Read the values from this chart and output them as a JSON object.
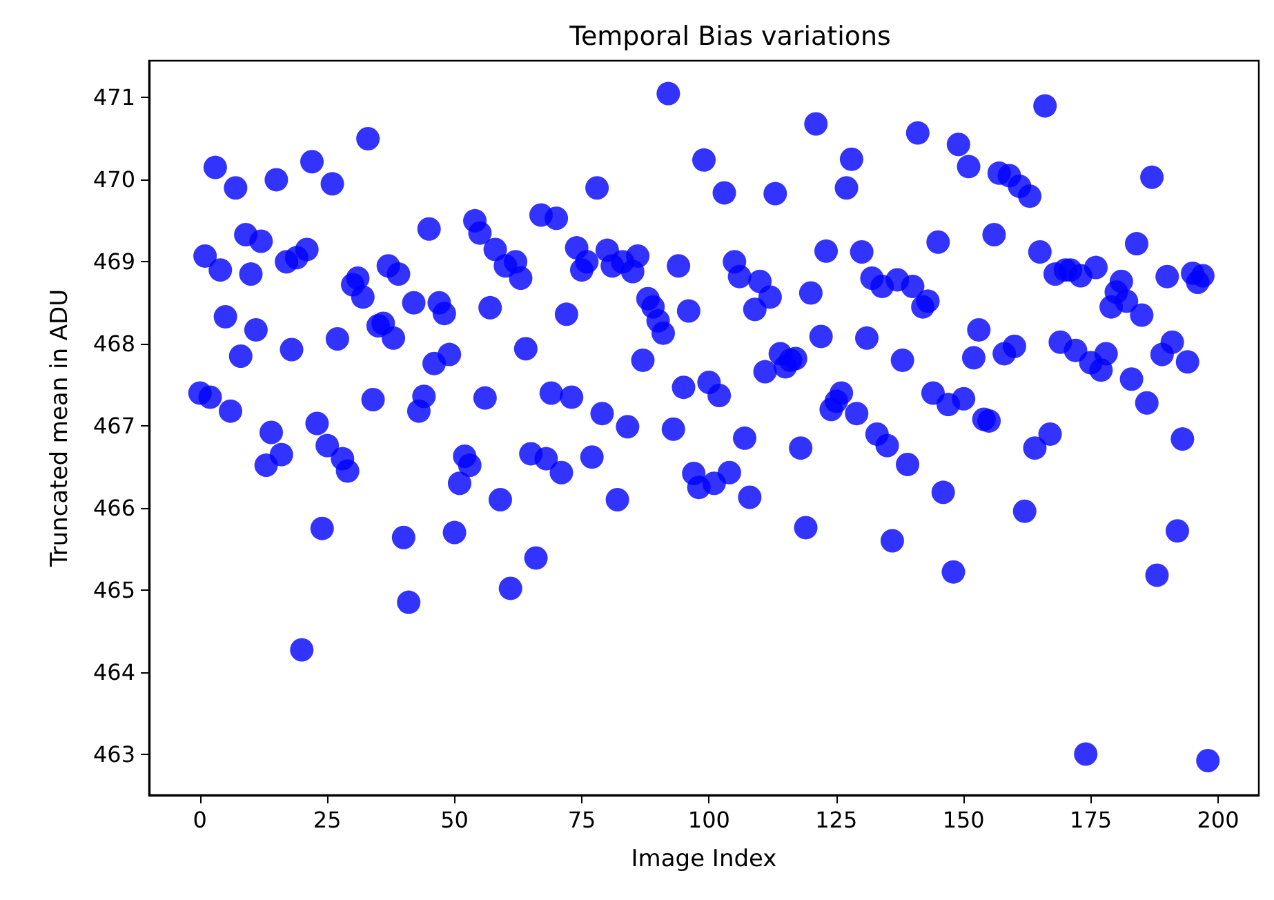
{
  "chart_data": {
    "type": "scatter",
    "title": "Temporal Bias variations",
    "xlabel": "Image Index",
    "ylabel": "Truncated mean in ADU",
    "x": [
      0,
      1,
      2,
      3,
      4,
      5,
      6,
      7,
      8,
      9,
      10,
      11,
      12,
      13,
      14,
      15,
      16,
      17,
      18,
      19,
      20,
      21,
      22,
      23,
      24,
      25,
      26,
      27,
      28,
      29,
      30,
      31,
      32,
      33,
      34,
      35,
      36,
      37,
      38,
      39,
      40,
      41,
      42,
      43,
      44,
      45,
      46,
      47,
      48,
      49,
      50,
      51,
      52,
      53,
      54,
      55,
      56,
      57,
      58,
      59,
      60,
      61,
      62,
      63,
      64,
      65,
      66,
      67,
      68,
      69,
      70,
      71,
      72,
      73,
      74,
      75,
      76,
      77,
      78,
      79,
      80,
      81,
      82,
      83,
      84,
      85,
      86,
      87,
      88,
      89,
      90,
      91,
      92,
      93,
      94,
      95,
      96,
      97,
      98,
      99,
      100,
      101,
      102,
      103,
      104,
      105,
      106,
      107,
      108,
      109,
      110,
      111,
      112,
      113,
      114,
      115,
      116,
      117,
      118,
      119,
      120,
      121,
      122,
      123,
      124,
      125,
      126,
      127,
      128,
      129,
      130,
      131,
      132,
      133,
      134,
      135,
      136,
      137,
      138,
      139,
      140,
      141,
      142,
      143,
      144,
      145,
      146,
      147,
      148,
      149,
      150,
      151,
      152,
      153,
      154,
      155,
      156,
      157,
      158,
      159,
      160,
      161,
      162,
      163,
      164,
      165,
      166,
      167,
      168,
      169,
      170,
      171,
      172,
      173,
      174,
      175,
      176,
      177,
      178,
      179,
      180,
      181,
      182,
      183,
      184,
      185,
      186,
      187,
      188,
      189,
      190,
      191,
      192,
      193,
      194,
      195,
      196,
      197,
      198
    ],
    "values": [
      467.4,
      469.07,
      467.35,
      470.15,
      468.9,
      468.33,
      467.18,
      469.9,
      467.85,
      469.33,
      468.85,
      468.17,
      469.25,
      466.52,
      466.92,
      470.0,
      466.65,
      469.0,
      467.93,
      469.05,
      464.27,
      469.15,
      470.22,
      467.03,
      465.75,
      466.76,
      469.95,
      468.06,
      466.6,
      466.45,
      468.72,
      468.8,
      468.57,
      470.5,
      467.32,
      468.22,
      468.25,
      468.95,
      468.07,
      468.85,
      465.64,
      464.85,
      468.5,
      467.18,
      467.36,
      469.4,
      467.76,
      468.5,
      468.37,
      467.87,
      465.7,
      466.3,
      466.63,
      466.52,
      469.5,
      469.35,
      467.34,
      468.44,
      469.15,
      466.1,
      468.95,
      465.02,
      469.0,
      468.8,
      467.94,
      466.66,
      465.39,
      469.57,
      466.6,
      467.4,
      469.53,
      466.43,
      468.36,
      467.35,
      469.17,
      468.9,
      469.0,
      466.62,
      469.9,
      467.15,
      469.14,
      468.95,
      466.1,
      469.0,
      466.99,
      468.88,
      469.07,
      467.8,
      468.55,
      468.45,
      468.28,
      468.13,
      471.05,
      466.96,
      468.95,
      467.47,
      468.4,
      466.42,
      466.25,
      470.24,
      467.53,
      466.3,
      467.37,
      469.84,
      466.43,
      469.0,
      468.82,
      466.85,
      466.13,
      468.42,
      468.76,
      467.66,
      468.57,
      469.83,
      467.88,
      467.72,
      467.8,
      467.82,
      466.73,
      465.76,
      468.62,
      470.68,
      468.09,
      469.13,
      467.2,
      467.3,
      467.4,
      469.9,
      470.25,
      467.15,
      469.12,
      468.07,
      468.8,
      466.9,
      468.7,
      466.76,
      465.6,
      468.78,
      467.8,
      466.53,
      468.7,
      470.57,
      468.45,
      468.52,
      467.4,
      469.24,
      466.19,
      467.26,
      465.22,
      470.43,
      467.33,
      470.16,
      467.83,
      468.17,
      467.08,
      467.06,
      469.33,
      470.08,
      467.88,
      470.05,
      467.97,
      469.92,
      465.96,
      469.8,
      466.73,
      469.12,
      470.9,
      466.9,
      468.85,
      468.02,
      468.9,
      468.9,
      467.92,
      468.83,
      463.0,
      467.77,
      468.93,
      467.68,
      467.88,
      468.45,
      468.63,
      468.76,
      468.52,
      467.57,
      469.22,
      468.35,
      467.28,
      470.03,
      465.18,
      467.87,
      468.82,
      468.02,
      465.72,
      466.84,
      467.78,
      468.86,
      468.75,
      468.83,
      462.92
    ],
    "color": "#0000ff",
    "marker": "circle",
    "grid": false,
    "xlim": [
      -10,
      208
    ],
    "ylim": [
      462.5,
      471.45
    ],
    "xticks": [
      0,
      25,
      50,
      75,
      100,
      125,
      150,
      175,
      200
    ],
    "yticks": [
      463,
      464,
      465,
      466,
      467,
      468,
      469,
      470,
      471
    ]
  }
}
